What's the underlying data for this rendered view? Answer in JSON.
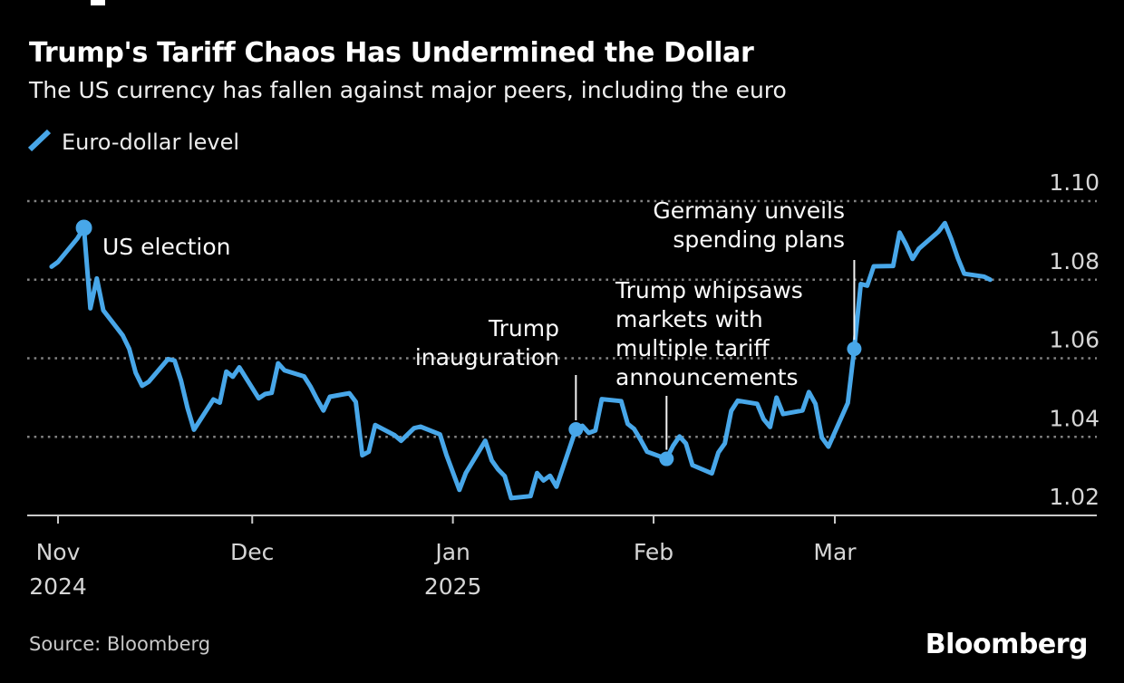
{
  "page": {
    "background": "#000000"
  },
  "header": {
    "title": "Trump's Tariff Chaos Has Undermined the Dollar",
    "subtitle": "The US currency has fallen against major peers, including the euro"
  },
  "legend": {
    "label": "Euro-dollar level",
    "line_color": "#48a7e9"
  },
  "footer": {
    "source": "Source: Bloomberg",
    "logo": "Bloomberg"
  },
  "chart_data": {
    "type": "line",
    "title": "Trump's Tariff Chaos Has Undermined the Dollar",
    "subtitle": "The US currency has fallen against major peers, including the euro",
    "xlabel": "",
    "ylabel": "Euro-dollar level",
    "ylim": [
      1.02,
      1.1
    ],
    "grid": "horizontal-dashed",
    "legend_position": "top-left",
    "line_color": "#48a7e9",
    "yticks": [
      {
        "value": 1.1,
        "label": "1.10"
      },
      {
        "value": 1.08,
        "label": "1.08"
      },
      {
        "value": 1.06,
        "label": "1.06"
      },
      {
        "value": 1.04,
        "label": "1.04"
      },
      {
        "value": 1.02,
        "label": "1.02"
      }
    ],
    "xticks": [
      {
        "date": "2024-11-01",
        "label": "Nov",
        "sublabel": "2024"
      },
      {
        "date": "2024-12-01",
        "label": "Dec",
        "sublabel": ""
      },
      {
        "date": "2025-01-01",
        "label": "Jan",
        "sublabel": "2025"
      },
      {
        "date": "2025-02-01",
        "label": "Feb",
        "sublabel": ""
      },
      {
        "date": "2025-03-01",
        "label": "Mar",
        "sublabel": ""
      }
    ],
    "series": [
      {
        "name": "Euro-dollar level",
        "color": "#48a7e9",
        "points": [
          [
            "2024-10-31",
            1.0833
          ],
          [
            "2024-11-01",
            1.0845
          ],
          [
            "2024-11-04",
            1.0905
          ],
          [
            "2024-11-05",
            1.0932
          ],
          [
            "2024-11-06",
            1.0727
          ],
          [
            "2024-11-07",
            1.0803
          ],
          [
            "2024-11-08",
            1.0722
          ],
          [
            "2024-11-11",
            1.0658
          ],
          [
            "2024-11-12",
            1.0624
          ],
          [
            "2024-11-13",
            1.0563
          ],
          [
            "2024-11-14",
            1.053
          ],
          [
            "2024-11-15",
            1.054
          ],
          [
            "2024-11-18",
            1.0598
          ],
          [
            "2024-11-19",
            1.0594
          ],
          [
            "2024-11-20",
            1.0543
          ],
          [
            "2024-11-21",
            1.0474
          ],
          [
            "2024-11-22",
            1.0418
          ],
          [
            "2024-11-25",
            1.0495
          ],
          [
            "2024-11-26",
            1.0487
          ],
          [
            "2024-11-27",
            1.0566
          ],
          [
            "2024-11-28",
            1.0553
          ],
          [
            "2024-11-29",
            1.0577
          ],
          [
            "2024-12-02",
            1.0498
          ],
          [
            "2024-12-03",
            1.0509
          ],
          [
            "2024-12-04",
            1.0512
          ],
          [
            "2024-12-05",
            1.0587
          ],
          [
            "2024-12-06",
            1.0569
          ],
          [
            "2024-12-09",
            1.0554
          ],
          [
            "2024-12-10",
            1.0528
          ],
          [
            "2024-12-11",
            1.0496
          ],
          [
            "2024-12-12",
            1.0467
          ],
          [
            "2024-12-13",
            1.0502
          ],
          [
            "2024-12-16",
            1.0511
          ],
          [
            "2024-12-17",
            1.0489
          ],
          [
            "2024-12-18",
            1.0353
          ],
          [
            "2024-12-19",
            1.0362
          ],
          [
            "2024-12-20",
            1.043
          ],
          [
            "2024-12-23",
            1.0404
          ],
          [
            "2024-12-24",
            1.039
          ],
          [
            "2024-12-26",
            1.0422
          ],
          [
            "2024-12-27",
            1.0426
          ],
          [
            "2024-12-30",
            1.0406
          ],
          [
            "2024-12-31",
            1.0354
          ],
          [
            "2025-01-02",
            1.0265
          ],
          [
            "2025-01-03",
            1.0308
          ],
          [
            "2025-01-06",
            1.039
          ],
          [
            "2025-01-07",
            1.034
          ],
          [
            "2025-01-08",
            1.0317
          ],
          [
            "2025-01-09",
            1.03
          ],
          [
            "2025-01-10",
            1.0244
          ],
          [
            "2025-01-13",
            1.0249
          ],
          [
            "2025-01-14",
            1.0308
          ],
          [
            "2025-01-15",
            1.0289
          ],
          [
            "2025-01-16",
            1.0301
          ],
          [
            "2025-01-17",
            1.0273
          ],
          [
            "2025-01-20",
            1.0419
          ],
          [
            "2025-01-21",
            1.0428
          ],
          [
            "2025-01-22",
            1.041
          ],
          [
            "2025-01-23",
            1.0416
          ],
          [
            "2025-01-24",
            1.0496
          ],
          [
            "2025-01-27",
            1.0491
          ],
          [
            "2025-01-28",
            1.0433
          ],
          [
            "2025-01-29",
            1.042
          ],
          [
            "2025-01-30",
            1.0392
          ],
          [
            "2025-01-31",
            1.0362
          ],
          [
            "2025-02-03",
            1.0344
          ],
          [
            "2025-02-04",
            1.0377
          ],
          [
            "2025-02-05",
            1.0401
          ],
          [
            "2025-02-06",
            1.0383
          ],
          [
            "2025-02-07",
            1.0328
          ],
          [
            "2025-02-10",
            1.0307
          ],
          [
            "2025-02-11",
            1.036
          ],
          [
            "2025-02-12",
            1.0383
          ],
          [
            "2025-02-13",
            1.0466
          ],
          [
            "2025-02-14",
            1.0492
          ],
          [
            "2025-02-17",
            1.0484
          ],
          [
            "2025-02-18",
            1.0445
          ],
          [
            "2025-02-19",
            1.0425
          ],
          [
            "2025-02-20",
            1.05
          ],
          [
            "2025-02-21",
            1.0458
          ],
          [
            "2025-02-24",
            1.0467
          ],
          [
            "2025-02-25",
            1.0514
          ],
          [
            "2025-02-26",
            1.0484
          ],
          [
            "2025-02-27",
            1.0398
          ],
          [
            "2025-02-28",
            1.0375
          ],
          [
            "2025-03-03",
            1.0486
          ],
          [
            "2025-03-04",
            1.0624
          ],
          [
            "2025-03-05",
            1.0789
          ],
          [
            "2025-03-06",
            1.0785
          ],
          [
            "2025-03-07",
            1.0834
          ],
          [
            "2025-03-10",
            1.0835
          ],
          [
            "2025-03-11",
            1.092
          ],
          [
            "2025-03-12",
            1.0889
          ],
          [
            "2025-03-13",
            1.0853
          ],
          [
            "2025-03-14",
            1.0879
          ],
          [
            "2025-03-17",
            1.0922
          ],
          [
            "2025-03-18",
            1.0944
          ],
          [
            "2025-03-19",
            1.0903
          ],
          [
            "2025-03-20",
            1.0855
          ],
          [
            "2025-03-21",
            1.0815
          ],
          [
            "2025-03-24",
            1.0808
          ],
          [
            "2025-03-25",
            1.08
          ]
        ]
      }
    ],
    "annotations": [
      {
        "id": "us-election",
        "lines": [
          "US election"
        ],
        "date": "2024-11-05",
        "value": 1.0932,
        "marker": true
      },
      {
        "id": "trump-inauguration",
        "lines": [
          "Trump",
          "inauguration"
        ],
        "date": "2025-01-20",
        "value": 1.0419,
        "marker": true
      },
      {
        "id": "trump-whipsaws",
        "lines": [
          "Trump whipsaws",
          "markets with",
          "multiple tariff",
          "announcements"
        ],
        "date": "2025-02-03",
        "value": 1.0344,
        "marker": true
      },
      {
        "id": "germany-spending",
        "lines": [
          "Germany unveils",
          "spending plans"
        ],
        "date": "2025-03-04",
        "value": 1.0624,
        "marker": true
      }
    ]
  }
}
